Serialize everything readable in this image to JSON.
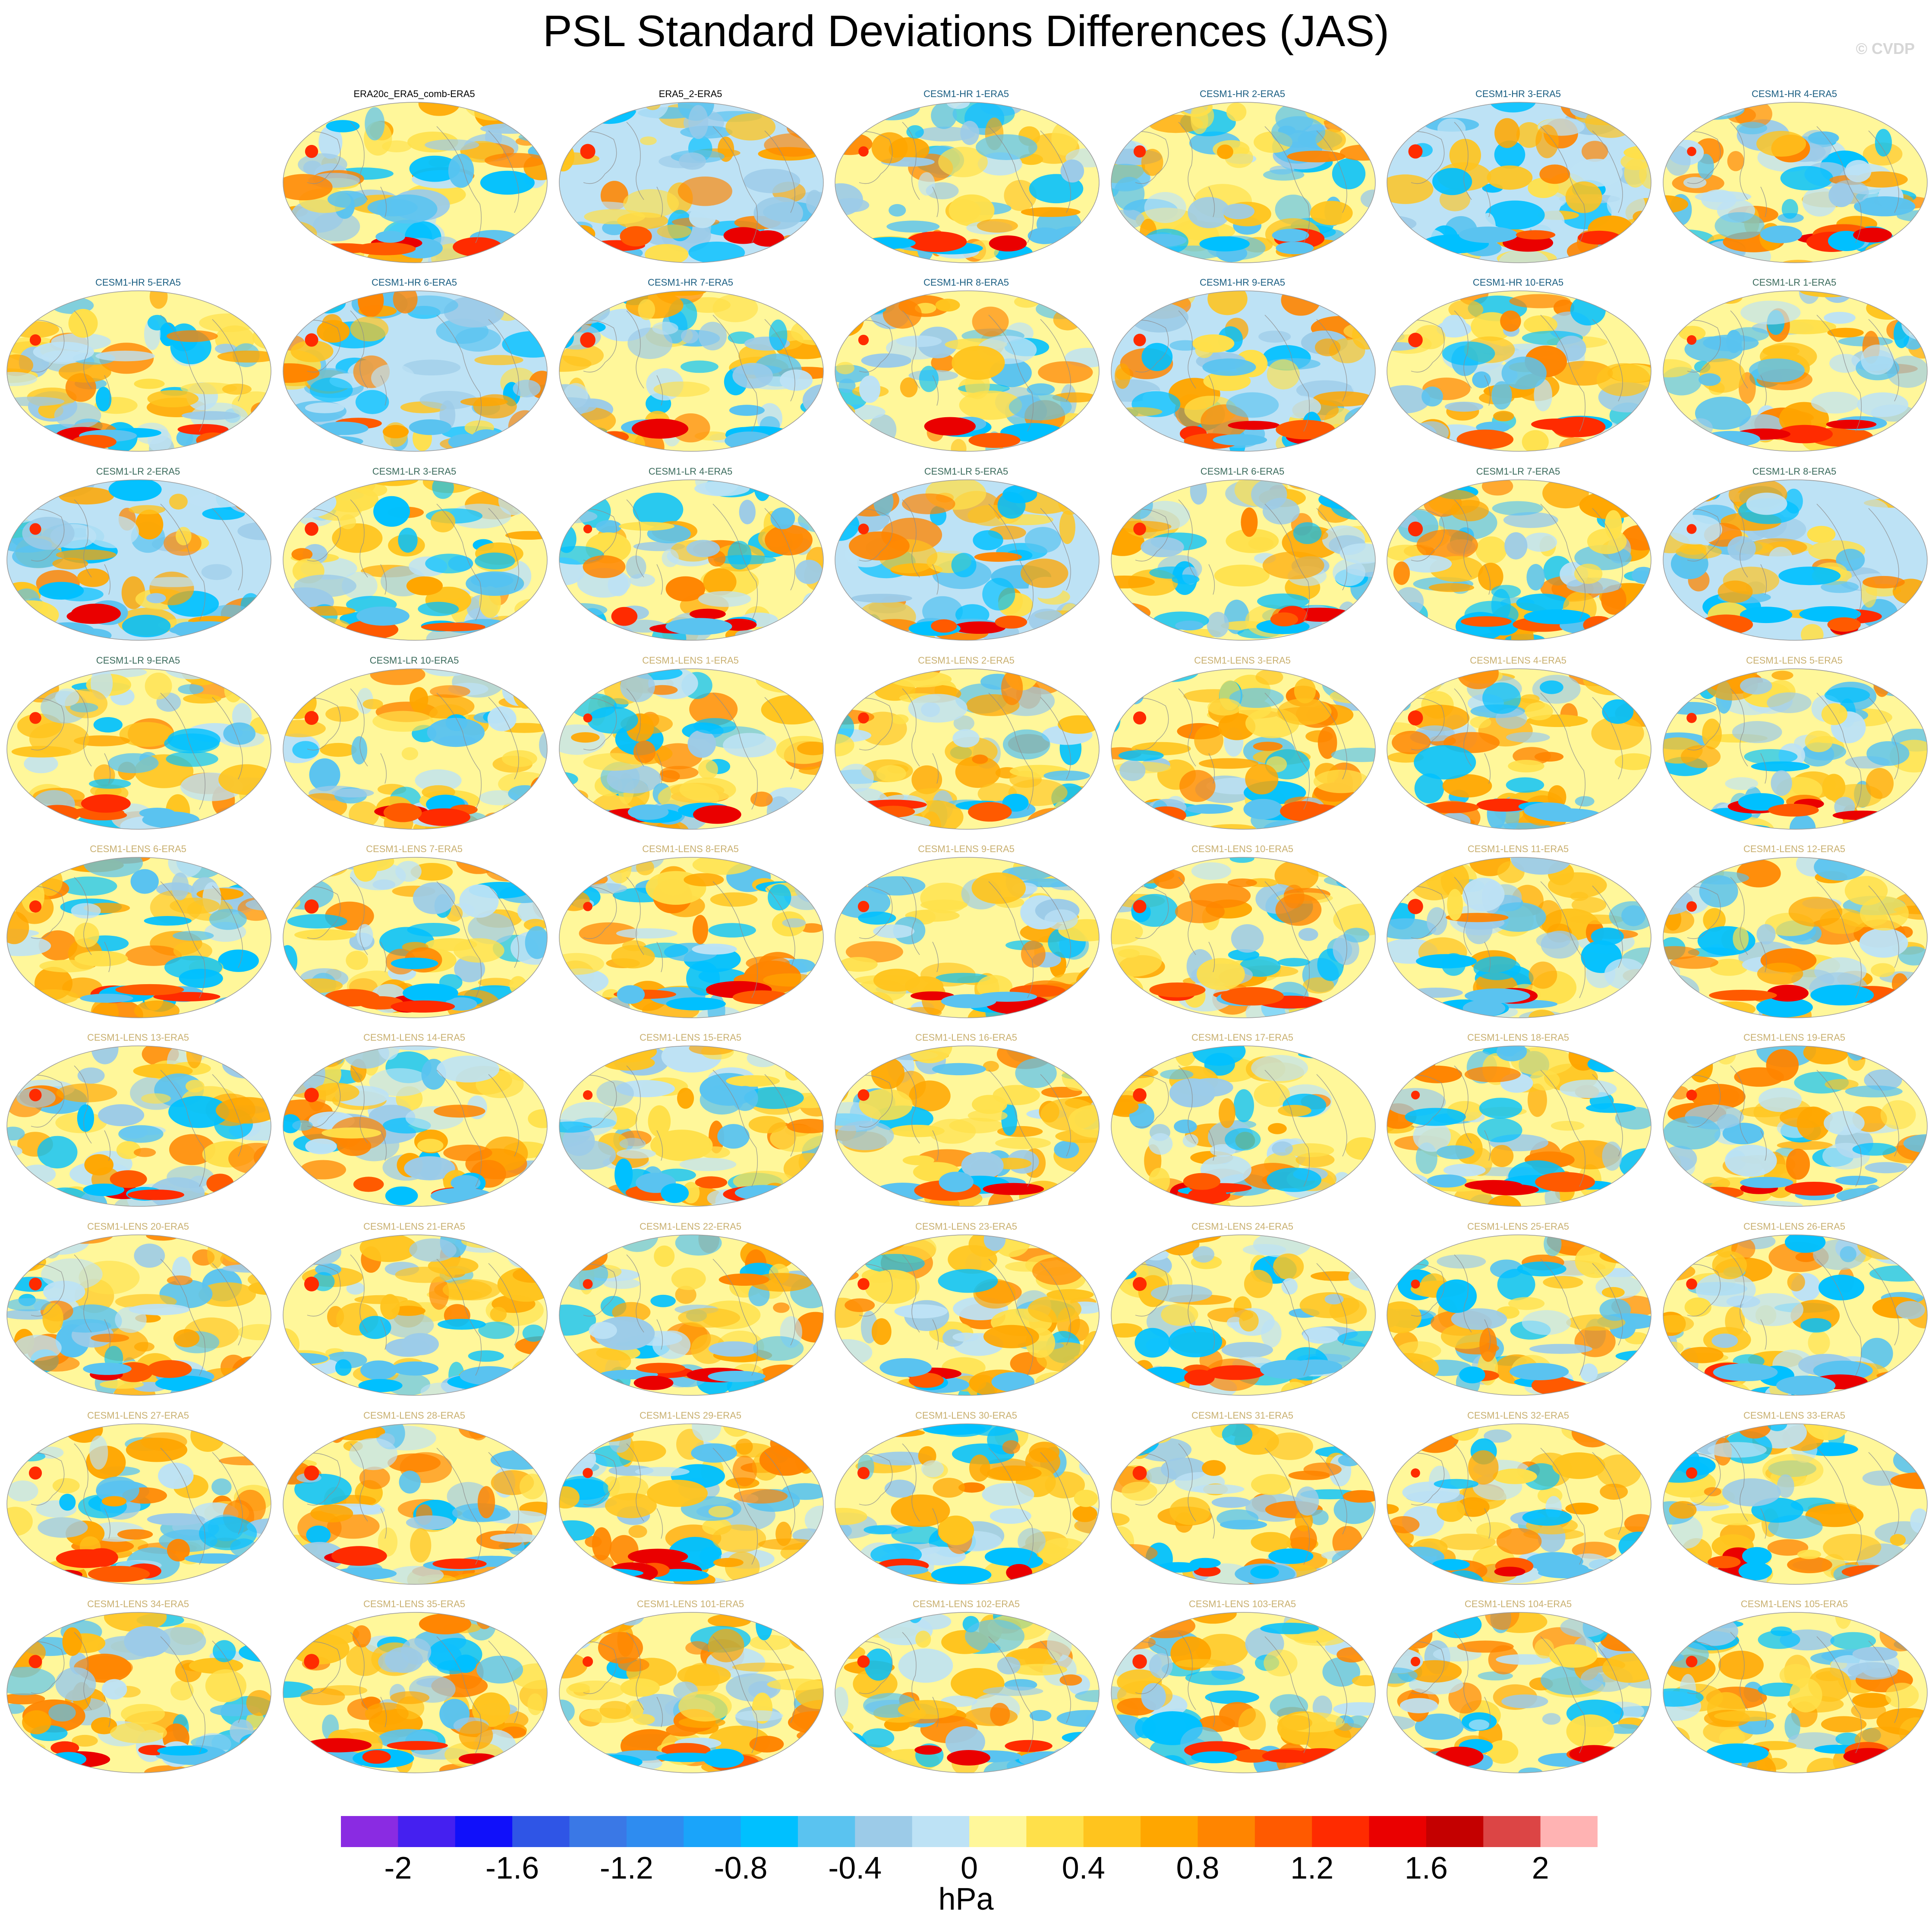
{
  "title": "PSL Standard Deviations Differences (JAS)",
  "credit": "© CVDP",
  "units": "hPa",
  "colorbar": {
    "colors": [
      "#8a2be2",
      "#4520f0",
      "#1010fa",
      "#2f55e6",
      "#3a78e6",
      "#2e8cf0",
      "#1aa4fa",
      "#00c0ff",
      "#5ac3f0",
      "#9ccbe8",
      "#bde2f5",
      "#fff79a",
      "#ffe04a",
      "#ffc41e",
      "#ffa600",
      "#ff8500",
      "#ff5a00",
      "#ff2b00",
      "#ea0000",
      "#c40000",
      "#dc4545",
      "#ffb3b3"
    ],
    "tick_labels": [
      "-2",
      "-1.6",
      "-1.2",
      "-0.8",
      "-0.4",
      "0",
      "0.4",
      "0.8",
      "1.2",
      "1.6",
      "2"
    ]
  },
  "group_colors": {
    "obs": "#000000",
    "hr": "#1a5e82",
    "lr": "#3b6b5c",
    "lens": "#c9b070"
  },
  "panels": [
    {
      "title": "ERA20c_ERA5_comb-ERA5",
      "group": "obs"
    },
    {
      "title": "ERA5_2-ERA5",
      "group": "obs"
    },
    {
      "title": "CESM1-HR 1-ERA5",
      "group": "hr"
    },
    {
      "title": "CESM1-HR 2-ERA5",
      "group": "hr"
    },
    {
      "title": "CESM1-HR 3-ERA5",
      "group": "hr"
    },
    {
      "title": "CESM1-HR 4-ERA5",
      "group": "hr"
    },
    {
      "title": "CESM1-HR 5-ERA5",
      "group": "hr"
    },
    {
      "title": "CESM1-HR 6-ERA5",
      "group": "hr"
    },
    {
      "title": "CESM1-HR 7-ERA5",
      "group": "hr"
    },
    {
      "title": "CESM1-HR 8-ERA5",
      "group": "hr"
    },
    {
      "title": "CESM1-HR 9-ERA5",
      "group": "hr"
    },
    {
      "title": "CESM1-HR 10-ERA5",
      "group": "hr"
    },
    {
      "title": "CESM1-LR 1-ERA5",
      "group": "lr"
    },
    {
      "title": "CESM1-LR 2-ERA5",
      "group": "lr"
    },
    {
      "title": "CESM1-LR 3-ERA5",
      "group": "lr"
    },
    {
      "title": "CESM1-LR 4-ERA5",
      "group": "lr"
    },
    {
      "title": "CESM1-LR 5-ERA5",
      "group": "lr"
    },
    {
      "title": "CESM1-LR 6-ERA5",
      "group": "lr"
    },
    {
      "title": "CESM1-LR 7-ERA5",
      "group": "lr"
    },
    {
      "title": "CESM1-LR 8-ERA5",
      "group": "lr"
    },
    {
      "title": "CESM1-LR 9-ERA5",
      "group": "lr"
    },
    {
      "title": "CESM1-LR 10-ERA5",
      "group": "lr"
    },
    {
      "title": "CESM1-LENS 1-ERA5",
      "group": "lens"
    },
    {
      "title": "CESM1-LENS 2-ERA5",
      "group": "lens"
    },
    {
      "title": "CESM1-LENS 3-ERA5",
      "group": "lens"
    },
    {
      "title": "CESM1-LENS 4-ERA5",
      "group": "lens"
    },
    {
      "title": "CESM1-LENS 5-ERA5",
      "group": "lens"
    },
    {
      "title": "CESM1-LENS 6-ERA5",
      "group": "lens"
    },
    {
      "title": "CESM1-LENS 7-ERA5",
      "group": "lens"
    },
    {
      "title": "CESM1-LENS 8-ERA5",
      "group": "lens"
    },
    {
      "title": "CESM1-LENS 9-ERA5",
      "group": "lens"
    },
    {
      "title": "CESM1-LENS 10-ERA5",
      "group": "lens"
    },
    {
      "title": "CESM1-LENS 11-ERA5",
      "group": "lens"
    },
    {
      "title": "CESM1-LENS 12-ERA5",
      "group": "lens"
    },
    {
      "title": "CESM1-LENS 13-ERA5",
      "group": "lens"
    },
    {
      "title": "CESM1-LENS 14-ERA5",
      "group": "lens"
    },
    {
      "title": "CESM1-LENS 15-ERA5",
      "group": "lens"
    },
    {
      "title": "CESM1-LENS 16-ERA5",
      "group": "lens"
    },
    {
      "title": "CESM1-LENS 17-ERA5",
      "group": "lens"
    },
    {
      "title": "CESM1-LENS 18-ERA5",
      "group": "lens"
    },
    {
      "title": "CESM1-LENS 19-ERA5",
      "group": "lens"
    },
    {
      "title": "CESM1-LENS 20-ERA5",
      "group": "lens"
    },
    {
      "title": "CESM1-LENS 21-ERA5",
      "group": "lens"
    },
    {
      "title": "CESM1-LENS 22-ERA5",
      "group": "lens"
    },
    {
      "title": "CESM1-LENS 23-ERA5",
      "group": "lens"
    },
    {
      "title": "CESM1-LENS 24-ERA5",
      "group": "lens"
    },
    {
      "title": "CESM1-LENS 25-ERA5",
      "group": "lens"
    },
    {
      "title": "CESM1-LENS 26-ERA5",
      "group": "lens"
    },
    {
      "title": "CESM1-LENS 27-ERA5",
      "group": "lens"
    },
    {
      "title": "CESM1-LENS 28-ERA5",
      "group": "lens"
    },
    {
      "title": "CESM1-LENS 29-ERA5",
      "group": "lens"
    },
    {
      "title": "CESM1-LENS 30-ERA5",
      "group": "lens"
    },
    {
      "title": "CESM1-LENS 31-ERA5",
      "group": "lens"
    },
    {
      "title": "CESM1-LENS 32-ERA5",
      "group": "lens"
    },
    {
      "title": "CESM1-LENS 33-ERA5",
      "group": "lens"
    },
    {
      "title": "CESM1-LENS 34-ERA5",
      "group": "lens"
    },
    {
      "title": "CESM1-LENS 35-ERA5",
      "group": "lens"
    },
    {
      "title": "CESM1-LENS 101-ERA5",
      "group": "lens"
    },
    {
      "title": "CESM1-LENS 102-ERA5",
      "group": "lens"
    },
    {
      "title": "CESM1-LENS 103-ERA5",
      "group": "lens"
    },
    {
      "title": "CESM1-LENS 104-ERA5",
      "group": "lens"
    },
    {
      "title": "CESM1-LENS 105-ERA5",
      "group": "lens"
    }
  ]
}
